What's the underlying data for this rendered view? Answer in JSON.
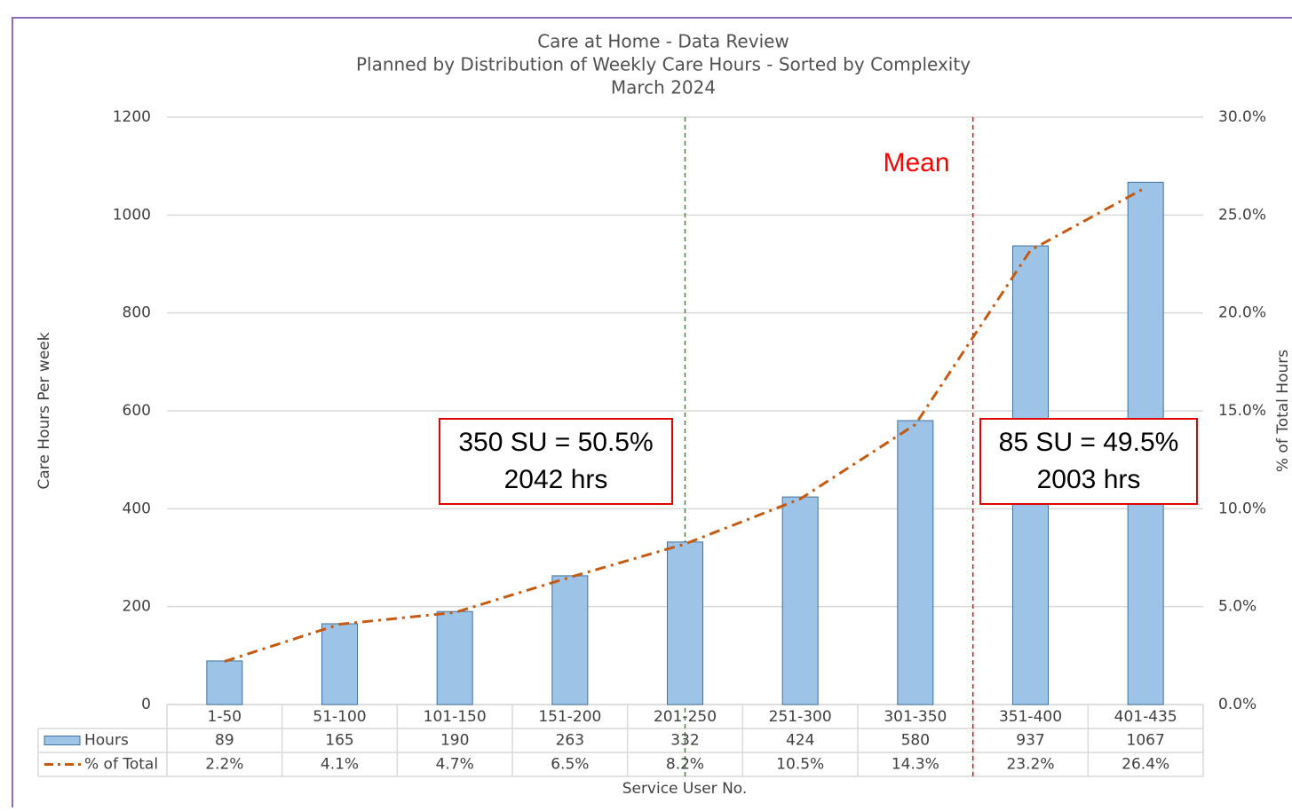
{
  "chart_data": {
    "type": "bar",
    "title": "Care at Home - Data Review",
    "subtitle": "Planned by Distribution of Weekly Care Hours - Sorted by Complexity",
    "subtitle2": "March 2024",
    "y_label": "Care Hours Per week",
    "y2_label": "% of Total Hours",
    "x_label": "Service User No.",
    "categories": [
      "1-50",
      "51-100",
      "101-150",
      "151-200",
      "201-250",
      "251-300",
      "301-350",
      "351-400",
      "401-435"
    ],
    "series": [
      {
        "name": "Hours",
        "type": "bar",
        "color": "#9dc3e6",
        "values": [
          89,
          165,
          190,
          263,
          332,
          424,
          580,
          937,
          1067
        ]
      },
      {
        "name": "% of Total",
        "type": "line",
        "axis": "y2",
        "color": "#c55a11",
        "values": [
          2.2,
          4.1,
          4.7,
          6.5,
          8.2,
          10.5,
          14.3,
          23.2,
          26.4
        ],
        "value_labels": [
          "2.2%",
          "4.1%",
          "4.7%",
          "6.5%",
          "8.2%",
          "10.5%",
          "14.3%",
          "23.2%",
          "26.4%"
        ]
      }
    ],
    "ylim": [
      0,
      1200
    ],
    "yticks": [
      0,
      200,
      400,
      600,
      800,
      1000,
      1200
    ],
    "y2lim": [
      0,
      30
    ],
    "y2ticks": [
      {
        "value": 0,
        "label": "0.0%"
      },
      {
        "value": 5,
        "label": "5.0%"
      },
      {
        "value": 10,
        "label": "10.0%"
      },
      {
        "value": 15,
        "label": "15.0%"
      },
      {
        "value": 20,
        "label": "20.0%"
      },
      {
        "value": 25,
        "label": "25.0%"
      },
      {
        "value": 30,
        "label": "30.0%"
      }
    ],
    "grid": true,
    "annotations": {
      "mean": "Mean",
      "left_box": [
        "350 SU = 50.5%",
        "2042 hrs"
      ],
      "right_box": [
        "85 SU = 49.5%",
        "2003 hrs"
      ]
    }
  }
}
